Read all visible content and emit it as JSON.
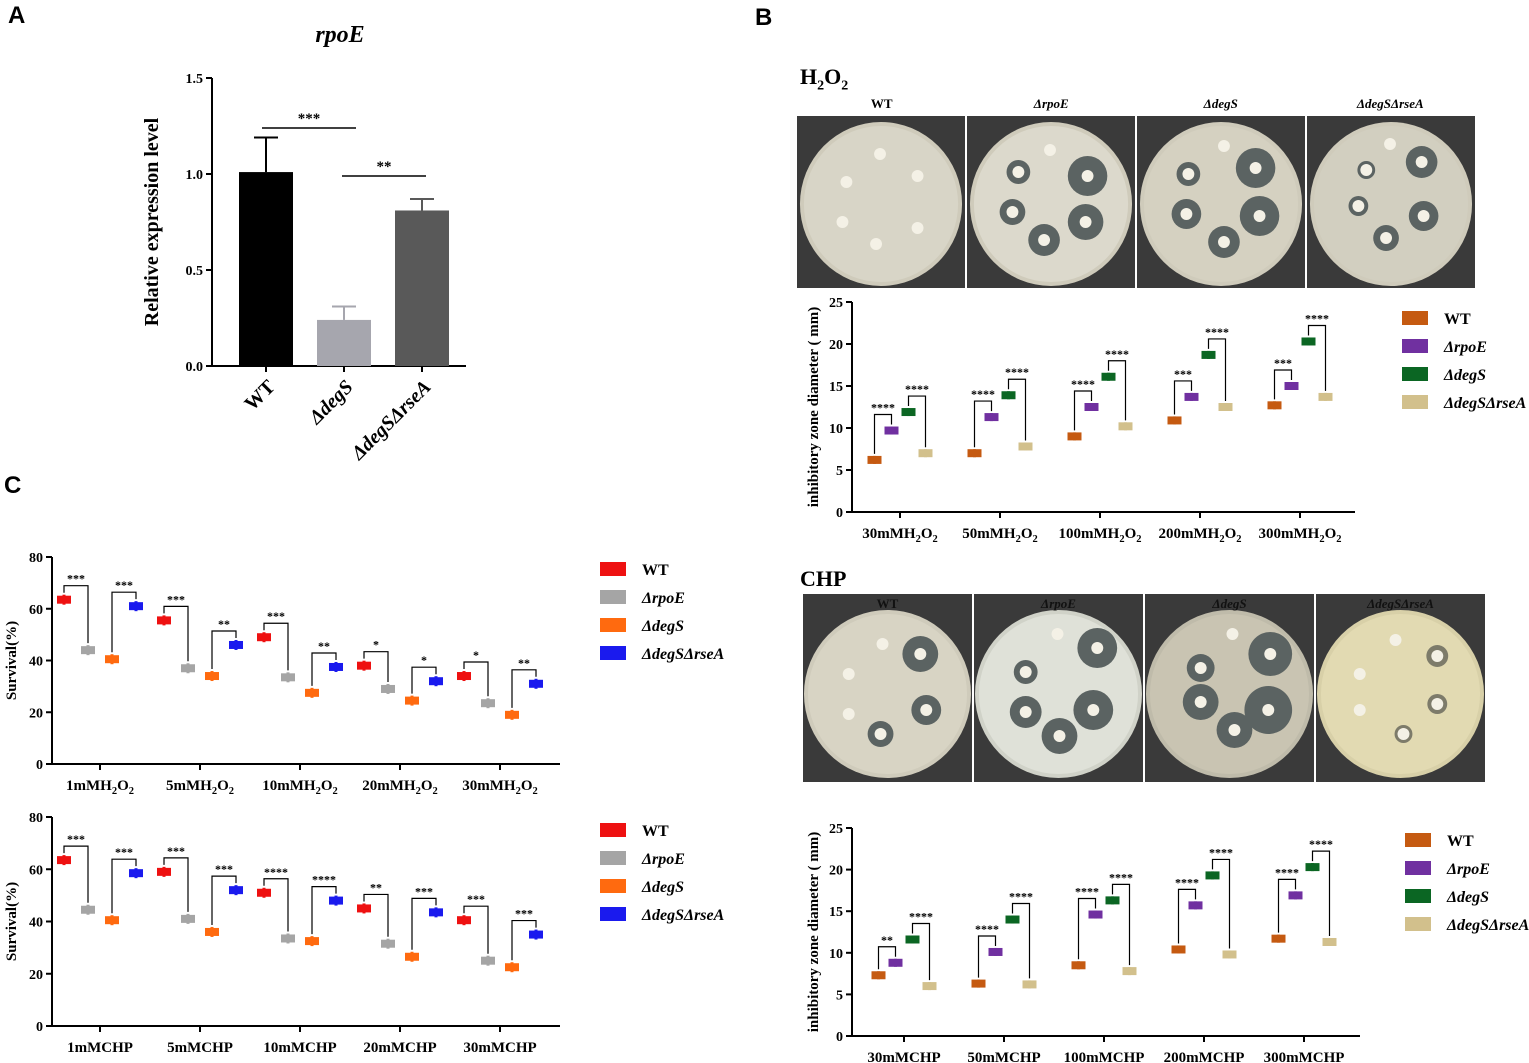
{
  "panels": {
    "a_label": "A",
    "b_label": "B",
    "c_label": "C",
    "h2o2_heading": "H",
    "h2o2_sub": "2",
    "h2o2_tail": "O",
    "h2o2_sub2": "2",
    "chp_heading": "CHP"
  },
  "plates": {
    "h2o2": [
      "WT",
      "ΔrpoE",
      "ΔdegS",
      "ΔdegSΔrseA"
    ],
    "chp": [
      "WT",
      "ΔrpoE",
      "ΔdegS",
      "ΔdegSΔrseA"
    ]
  },
  "colors": {
    "wt_bar": "#000000",
    "degs_bar": "#a6a6ae",
    "degsrsea_bar": "#595959",
    "B_wt": "#c55a11",
    "B_rpoe": "#7030a0",
    "B_degs": "#0b6623",
    "B_degsrsea": "#d2c08c",
    "C_wt": "#ee1111",
    "C_rpoe": "#a5a5a5",
    "C_degs": "#ff6a0f",
    "C_degsrsea": "#1a1aee"
  },
  "chart_data": [
    {
      "id": "A",
      "type": "bar",
      "title": "rpoE",
      "ylabel": "Relative expression level",
      "xlabel": "",
      "ylim": [
        0,
        1.5
      ],
      "yticks": [
        "0.0",
        "0.5",
        "1.0",
        "1.5"
      ],
      "categories": [
        "WT",
        "ΔdegS",
        "ΔdegSΔrseA"
      ],
      "values": [
        1.01,
        0.24,
        0.81
      ],
      "errors": [
        0.18,
        0.07,
        0.06
      ],
      "significance": [
        {
          "from": 0,
          "to": 1,
          "label": "***"
        },
        {
          "from": 1,
          "to": 2,
          "label": "**"
        }
      ]
    },
    {
      "id": "B_H2O2",
      "type": "scatter",
      "ylabel": "inhibitory zone diameter ( mm)",
      "ylim": [
        0,
        25
      ],
      "yticks": [
        "0",
        "5",
        "10",
        "15",
        "20",
        "25"
      ],
      "categories": [
        "30mMH2O2",
        "50mMH2O2",
        "100mMH2O2",
        "200mMH2O2",
        "300mMH2O2"
      ],
      "legend": [
        "WT",
        "ΔrpoE",
        "ΔdegS",
        "ΔdegSΔrseA"
      ],
      "series": [
        {
          "name": "WT",
          "values": [
            6.2,
            7.0,
            9.0,
            10.9,
            12.7
          ]
        },
        {
          "name": "ΔrpoE",
          "values": [
            9.7,
            11.3,
            12.5,
            13.7,
            15.0
          ]
        },
        {
          "name": "ΔdegS",
          "values": [
            11.9,
            13.9,
            16.1,
            18.7,
            20.3
          ]
        },
        {
          "name": "ΔdegSΔrseA",
          "values": [
            7.0,
            7.8,
            10.2,
            12.5,
            13.7
          ]
        }
      ],
      "significance": [
        {
          "cat": 0,
          "from": 0,
          "to": 1,
          "label": "****"
        },
        {
          "cat": 0,
          "from": 2,
          "to": 3,
          "label": "****"
        },
        {
          "cat": 1,
          "from": 0,
          "to": 1,
          "label": "****"
        },
        {
          "cat": 1,
          "from": 2,
          "to": 3,
          "label": "****"
        },
        {
          "cat": 2,
          "from": 0,
          "to": 1,
          "label": "****"
        },
        {
          "cat": 2,
          "from": 2,
          "to": 3,
          "label": "****"
        },
        {
          "cat": 3,
          "from": 0,
          "to": 1,
          "label": "***"
        },
        {
          "cat": 3,
          "from": 2,
          "to": 3,
          "label": "****"
        },
        {
          "cat": 4,
          "from": 0,
          "to": 1,
          "label": "***"
        },
        {
          "cat": 4,
          "from": 2,
          "to": 3,
          "label": "****"
        }
      ]
    },
    {
      "id": "B_CHP",
      "type": "scatter",
      "ylabel": "inhibitory zone diameter ( mm)",
      "ylim": [
        0,
        25
      ],
      "yticks": [
        "0",
        "5",
        "10",
        "15",
        "20",
        "25"
      ],
      "categories": [
        "30mMCHP",
        "50mMCHP",
        "100mMCHP",
        "200mMCHP",
        "300mMCHP"
      ],
      "legend": [
        "WT",
        "ΔrpoE",
        "ΔdegS",
        "ΔdegSΔrseA"
      ],
      "series": [
        {
          "name": "WT",
          "values": [
            7.3,
            6.3,
            8.5,
            10.4,
            11.7
          ]
        },
        {
          "name": "ΔrpoE",
          "values": [
            8.8,
            10.1,
            14.6,
            15.7,
            16.9
          ]
        },
        {
          "name": "ΔdegS",
          "values": [
            11.6,
            14.0,
            16.3,
            19.3,
            20.3
          ]
        },
        {
          "name": "ΔdegSΔrseA",
          "values": [
            6.0,
            6.2,
            7.8,
            9.8,
            11.3
          ]
        }
      ],
      "significance": [
        {
          "cat": 0,
          "from": 0,
          "to": 1,
          "label": "**"
        },
        {
          "cat": 0,
          "from": 2,
          "to": 3,
          "label": "****"
        },
        {
          "cat": 1,
          "from": 0,
          "to": 1,
          "label": "****"
        },
        {
          "cat": 1,
          "from": 2,
          "to": 3,
          "label": "****"
        },
        {
          "cat": 2,
          "from": 0,
          "to": 1,
          "label": "****"
        },
        {
          "cat": 2,
          "from": 2,
          "to": 3,
          "label": "****"
        },
        {
          "cat": 3,
          "from": 0,
          "to": 1,
          "label": "****"
        },
        {
          "cat": 3,
          "from": 2,
          "to": 3,
          "label": "****"
        },
        {
          "cat": 4,
          "from": 0,
          "to": 1,
          "label": "****"
        },
        {
          "cat": 4,
          "from": 2,
          "to": 3,
          "label": "****"
        }
      ]
    },
    {
      "id": "C_H2O2",
      "type": "scatter",
      "ylabel": "Survival(%)",
      "ylim": [
        0,
        80
      ],
      "yticks": [
        "0",
        "20",
        "40",
        "60",
        "80"
      ],
      "categories": [
        "1mMH2O2",
        "5mMH2O2",
        "10mMH2O2",
        "20mMH2O2",
        "30mMH2O2"
      ],
      "legend": [
        "WT",
        "ΔrpoE",
        "ΔdegS",
        "ΔdegSΔrseA"
      ],
      "series": [
        {
          "name": "WT",
          "values": [
            63.5,
            55.5,
            49.0,
            38.0,
            34.0
          ]
        },
        {
          "name": "ΔrpoE",
          "values": [
            44.0,
            37.0,
            33.5,
            29.0,
            23.5
          ]
        },
        {
          "name": "ΔdegS",
          "values": [
            40.5,
            34.0,
            27.5,
            24.5,
            19.0
          ]
        },
        {
          "name": "ΔdegSΔrseA",
          "values": [
            61.0,
            46.0,
            37.5,
            32.0,
            31.0
          ]
        }
      ],
      "significance": [
        {
          "cat": 0,
          "from": 0,
          "to": 1,
          "label": "***"
        },
        {
          "cat": 0,
          "from": 2,
          "to": 3,
          "label": "***"
        },
        {
          "cat": 1,
          "from": 0,
          "to": 1,
          "label": "***"
        },
        {
          "cat": 1,
          "from": 2,
          "to": 3,
          "label": "**"
        },
        {
          "cat": 2,
          "from": 0,
          "to": 1,
          "label": "***"
        },
        {
          "cat": 2,
          "from": 2,
          "to": 3,
          "label": "**"
        },
        {
          "cat": 3,
          "from": 0,
          "to": 1,
          "label": "*"
        },
        {
          "cat": 3,
          "from": 2,
          "to": 3,
          "label": "*"
        },
        {
          "cat": 4,
          "from": 0,
          "to": 1,
          "label": "*"
        },
        {
          "cat": 4,
          "from": 2,
          "to": 3,
          "label": "**"
        }
      ]
    },
    {
      "id": "C_CHP",
      "type": "scatter",
      "ylabel": "Survival(%)",
      "ylim": [
        0,
        80
      ],
      "yticks": [
        "0",
        "20",
        "40",
        "60",
        "80"
      ],
      "categories": [
        "1mMCHP",
        "5mMCHP",
        "10mMCHP",
        "20mMCHP",
        "30mMCHP"
      ],
      "legend": [
        "WT",
        "ΔrpoE",
        "ΔdegS",
        "ΔdegSΔrseA"
      ],
      "series": [
        {
          "name": "WT",
          "values": [
            63.5,
            59.0,
            51.0,
            45.0,
            40.5
          ]
        },
        {
          "name": "ΔrpoE",
          "values": [
            44.5,
            41.0,
            33.5,
            31.5,
            25.0
          ]
        },
        {
          "name": "ΔdegS",
          "values": [
            40.5,
            36.0,
            32.5,
            26.5,
            22.5
          ]
        },
        {
          "name": "ΔdegSΔrseA",
          "values": [
            58.5,
            52.0,
            48.0,
            43.5,
            35.0
          ]
        }
      ],
      "significance": [
        {
          "cat": 0,
          "from": 0,
          "to": 1,
          "label": "***"
        },
        {
          "cat": 0,
          "from": 2,
          "to": 3,
          "label": "***"
        },
        {
          "cat": 1,
          "from": 0,
          "to": 1,
          "label": "***"
        },
        {
          "cat": 1,
          "from": 2,
          "to": 3,
          "label": "***"
        },
        {
          "cat": 2,
          "from": 0,
          "to": 1,
          "label": "****"
        },
        {
          "cat": 2,
          "from": 2,
          "to": 3,
          "label": "****"
        },
        {
          "cat": 3,
          "from": 0,
          "to": 1,
          "label": "**"
        },
        {
          "cat": 3,
          "from": 2,
          "to": 3,
          "label": "***"
        },
        {
          "cat": 4,
          "from": 0,
          "to": 1,
          "label": "***"
        },
        {
          "cat": 4,
          "from": 2,
          "to": 3,
          "label": "***"
        }
      ]
    }
  ]
}
